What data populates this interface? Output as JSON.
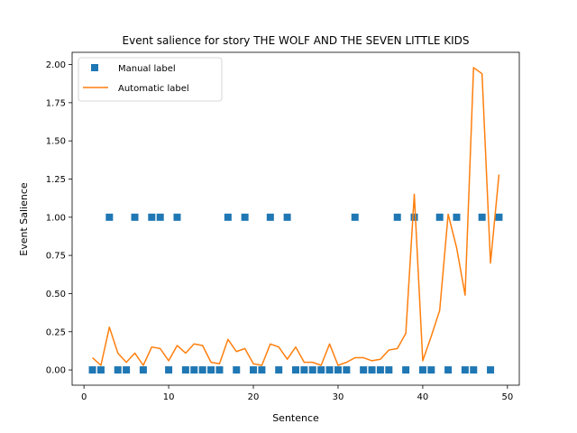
{
  "chart_data": {
    "type": "scatter+line",
    "title": "Event salience for story THE WOLF AND THE SEVEN LITTLE KIDS",
    "xlabel": "Sentence",
    "ylabel": "Event Salience",
    "xlim": [
      -1.4,
      51.4
    ],
    "ylim": [
      -0.1,
      2.08
    ],
    "xticks": [
      0,
      10,
      20,
      30,
      40,
      50
    ],
    "yticks": [
      0.0,
      0.25,
      0.5,
      0.75,
      1.0,
      1.25,
      1.5,
      1.75,
      2.0
    ],
    "ytick_labels": [
      "0.00",
      "0.25",
      "0.50",
      "0.75",
      "1.00",
      "1.25",
      "1.50",
      "1.75",
      "2.00"
    ],
    "grid": false,
    "legend_position": "top-left",
    "series": [
      {
        "name": "Manual label",
        "kind": "scatter",
        "marker": "square",
        "color": "#1f77b4",
        "x": [
          1,
          2,
          3,
          4,
          5,
          6,
          7,
          8,
          9,
          10,
          11,
          12,
          13,
          14,
          15,
          16,
          17,
          18,
          19,
          20,
          21,
          22,
          23,
          24,
          25,
          26,
          27,
          28,
          29,
          30,
          31,
          32,
          33,
          34,
          35,
          36,
          37,
          38,
          39,
          40,
          41,
          42,
          43,
          44,
          45,
          46,
          47,
          48,
          49
        ],
        "y": [
          0,
          0,
          1,
          0,
          0,
          1,
          0,
          1,
          1,
          0,
          1,
          0,
          0,
          0,
          0,
          0,
          1,
          0,
          1,
          0,
          0,
          1,
          0,
          1,
          0,
          0,
          0,
          0,
          0,
          0,
          0,
          1,
          0,
          0,
          0,
          0,
          1,
          0,
          1,
          0,
          0,
          1,
          0,
          1,
          0,
          0,
          1,
          0,
          1
        ]
      },
      {
        "name": "Automatic label",
        "kind": "line",
        "color": "#ff7f0e",
        "x": [
          1,
          2,
          3,
          4,
          5,
          6,
          7,
          8,
          9,
          10,
          11,
          12,
          13,
          14,
          15,
          16,
          17,
          18,
          19,
          20,
          21,
          22,
          23,
          24,
          25,
          26,
          27,
          28,
          29,
          30,
          31,
          32,
          33,
          34,
          35,
          36,
          37,
          38,
          39,
          40,
          41,
          42,
          43,
          44,
          45,
          46,
          47,
          48,
          49
        ],
        "y": [
          0.08,
          0.03,
          0.28,
          0.11,
          0.05,
          0.11,
          0.03,
          0.15,
          0.14,
          0.06,
          0.16,
          0.11,
          0.17,
          0.16,
          0.05,
          0.04,
          0.2,
          0.12,
          0.14,
          0.04,
          0.03,
          0.17,
          0.15,
          0.07,
          0.15,
          0.05,
          0.05,
          0.03,
          0.17,
          0.03,
          0.05,
          0.08,
          0.08,
          0.06,
          0.07,
          0.13,
          0.14,
          0.24,
          1.15,
          0.06,
          0.22,
          0.39,
          1.02,
          0.8,
          0.49,
          1.98,
          1.94,
          0.7,
          1.28
        ]
      }
    ]
  }
}
